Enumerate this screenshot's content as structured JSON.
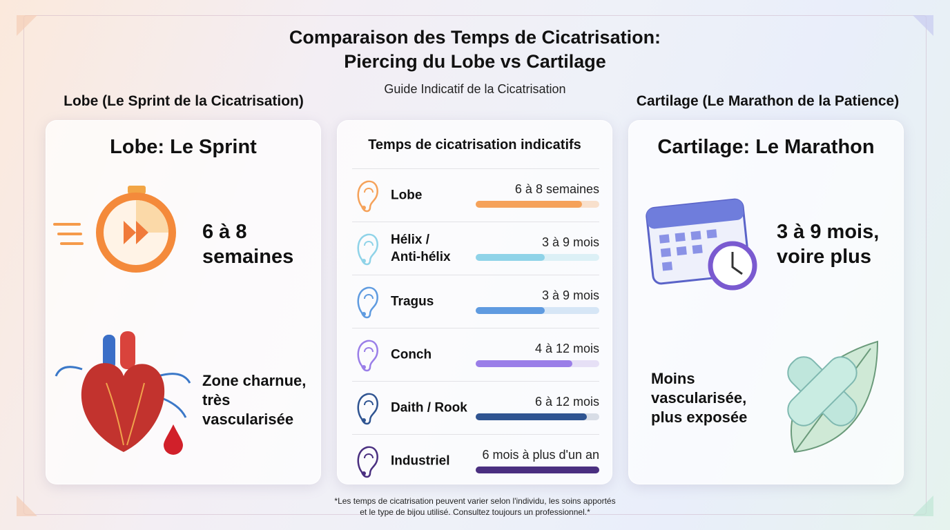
{
  "title": {
    "line1": "Comparaison des Temps de Cicatrisation:",
    "line2": "Piercing du Lobe vs Cartilage"
  },
  "subtitle": "Guide Indicatif de la Cicatrisation",
  "left": {
    "heading": "Lobe (Le Sprint de la Cicatrisation)",
    "panel_title": "Lobe: Le Sprint",
    "time": {
      "l1": "6 à 8",
      "l2": "semaines"
    },
    "desc": {
      "l1": "Zone charnue,",
      "l2": "très",
      "l3": "vascularisée"
    },
    "icons": [
      "stopwatch-fast-forward-icon",
      "heart-icon",
      "blood-drop-icon"
    ]
  },
  "center": {
    "title": "Temps de cicatrisation indicatifs",
    "rows": [
      {
        "l1": "Lobe",
        "l2": "",
        "time": "6 à 8 semaines",
        "fill_percent": 86,
        "color": "#f5a25a",
        "track": "#f8e0cc",
        "icon": "ear-lobe-icon"
      },
      {
        "l1": "Hélix /",
        "l2": "Anti-hélix",
        "time": "3 à 9 mois",
        "fill_percent": 56,
        "color": "#8fd3e8",
        "track": "#dcf0f6",
        "icon": "ear-helix-icon"
      },
      {
        "l1": "Tragus",
        "l2": "",
        "time": "3 à 9 mois",
        "fill_percent": 56,
        "color": "#5f9be0",
        "track": "#d6e6f6",
        "icon": "ear-tragus-icon"
      },
      {
        "l1": "Conch",
        "l2": "",
        "time": "4 à 12 mois",
        "fill_percent": 78,
        "color": "#9a7ee8",
        "track": "#e6e0f6",
        "icon": "ear-conch-icon"
      },
      {
        "l1": "Daith / Rook",
        "l2": "",
        "time": "6 à 12 mois",
        "fill_percent": 90,
        "color": "#2f5491",
        "track": "#d8dde6",
        "icon": "ear-daith-icon"
      },
      {
        "l1": "Industriel",
        "l2": "",
        "time": "6 mois à plus d'un an",
        "fill_percent": 100,
        "color": "#4a2f80",
        "track": "#ddd8ea",
        "icon": "ear-industrial-icon"
      }
    ]
  },
  "right": {
    "heading": "Cartilage (Le Marathon de la Patience)",
    "panel_title": "Cartilage: Le Marathon",
    "time": {
      "l1": "3 à 9 mois,",
      "l2": "voire plus"
    },
    "desc": {
      "l1": "Moins",
      "l2": "vascularisée,",
      "l3": "plus exposée"
    },
    "icons": [
      "calendar-clock-icon",
      "bandage-leaf-icon"
    ]
  },
  "footnote": {
    "l1": "*Les temps de cicatrisation peuvent varier selon l'individu, les soins apportés",
    "l2": "et le type de bijou utilisé. Consultez toujours un professionnel.*"
  }
}
